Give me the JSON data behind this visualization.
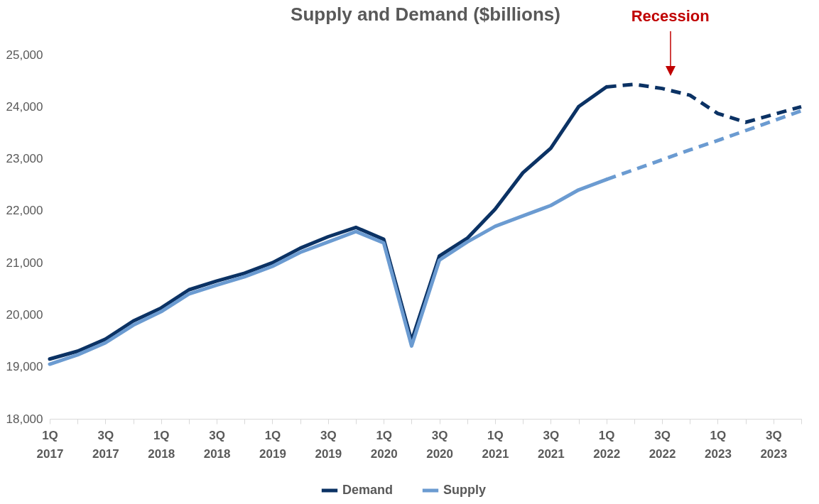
{
  "chart_data": {
    "type": "line",
    "title": "Supply and Demand ($billions)",
    "categories": [
      "1Q 2017",
      null,
      "3Q 2017",
      null,
      "1Q 2018",
      null,
      "3Q 2018",
      null,
      "1Q 2019",
      null,
      "3Q 2019",
      null,
      "1Q 2020",
      null,
      "3Q 2020",
      null,
      "1Q 2021",
      null,
      "3Q 2021",
      null,
      "1Q 2022",
      null,
      "3Q 2022",
      null,
      "1Q 2023",
      null,
      "3Q 2023",
      null
    ],
    "series": [
      {
        "name": "Demand",
        "color": "#0b3264",
        "line_style": "solid",
        "values": [
          19150,
          19300,
          19530,
          19880,
          20130,
          20480,
          20650,
          20800,
          21000,
          21280,
          21500,
          21680,
          21450,
          19500,
          21130,
          21470,
          22030,
          22730,
          23200,
          24000,
          24380,
          null,
          null,
          null,
          null,
          null,
          null,
          null
        ]
      },
      {
        "color": "#0b3264",
        "line_style": "dashed",
        "values": [
          null,
          null,
          null,
          null,
          null,
          null,
          null,
          null,
          null,
          null,
          null,
          null,
          null,
          null,
          null,
          null,
          null,
          null,
          null,
          null,
          24380,
          24430,
          24350,
          24220,
          23870,
          23700,
          23850,
          24000
        ]
      },
      {
        "name": "Supply",
        "color": "#6b9bd1",
        "line_style": "solid",
        "values": [
          19050,
          19230,
          19460,
          19800,
          20060,
          20400,
          20570,
          20730,
          20930,
          21200,
          21400,
          21600,
          21380,
          19400,
          21050,
          21400,
          21700,
          21900,
          22100,
          22400,
          22600,
          null,
          null,
          null,
          null,
          null,
          null,
          null
        ]
      },
      {
        "color": "#6b9bd1",
        "line_style": "dashed",
        "values": [
          null,
          null,
          null,
          null,
          null,
          null,
          null,
          null,
          null,
          null,
          null,
          null,
          null,
          null,
          null,
          null,
          null,
          null,
          null,
          null,
          22600,
          22790,
          22980,
          23170,
          23350,
          23540,
          23730,
          23920
        ]
      }
    ],
    "ylim": [
      18000,
      25000
    ],
    "yticks": [
      {
        "value": 18000,
        "label": "18,000"
      },
      {
        "value": 19000,
        "label": "19,000"
      },
      {
        "value": 20000,
        "label": "20,000"
      },
      {
        "value": 21000,
        "label": "21,000"
      },
      {
        "value": 22000,
        "label": "22,000"
      },
      {
        "value": 23000,
        "label": "23,000"
      },
      {
        "value": 24000,
        "label": "24,000"
      },
      {
        "value": 25000,
        "label": "25,000"
      }
    ],
    "grid": false,
    "legend": "bottom",
    "annotations": [
      "Recession"
    ]
  }
}
